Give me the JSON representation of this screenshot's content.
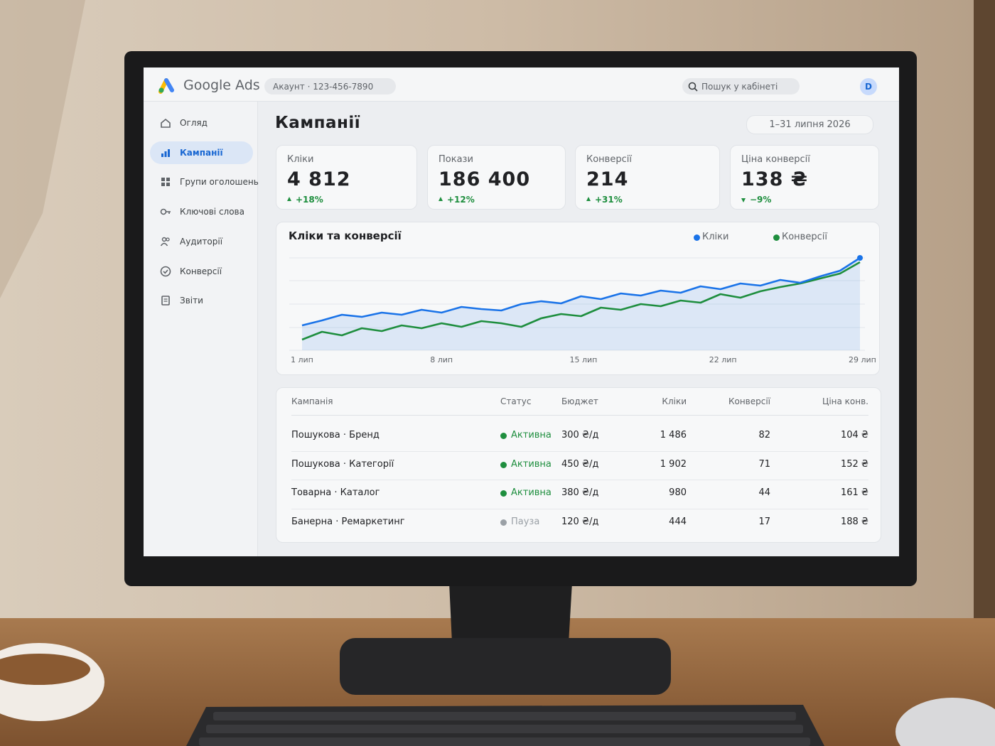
{
  "header": {
    "brand": "Google Ads",
    "account": "Акаунт · 123-456-7890",
    "search": "Пошук у кабінеті",
    "avatar": "D"
  },
  "nav": [
    "Огляд",
    "Кампанії",
    "Групи оголошень",
    "Ключові слова",
    "Аудиторії",
    "Конверсії",
    "Звіти"
  ],
  "page": {
    "title": "Кампанії",
    "date_range": "1–31 липня 2026"
  },
  "kpis": [
    {
      "label": "Кліки",
      "value": "4 812",
      "delta": "+18%"
    },
    {
      "label": "Покази",
      "value": "186 400",
      "delta": "+12%"
    },
    {
      "label": "Конверсії",
      "value": "214",
      "delta": "+31%"
    },
    {
      "label": "Ціна конверсії",
      "value": "138 ₴",
      "delta": "−9%"
    }
  ],
  "chart": {
    "title": "Кліки та конверсії",
    "x_labels": [
      "1 лип",
      "8 лип",
      "15 лип",
      "22 лип",
      "29 лип"
    ],
    "series": [
      {
        "name": "Кліки",
        "color": "#1a73e8",
        "values": [
          35,
          42,
          50,
          47,
          53,
          50,
          57,
          53,
          61,
          58,
          56,
          65,
          69,
          66,
          76,
          72,
          80,
          77,
          84,
          81,
          90,
          86,
          94,
          91,
          99,
          95,
          104,
          112,
          130
        ]
      },
      {
        "name": "Конверсії",
        "color": "#1e8e3e",
        "values": [
          15,
          26,
          21,
          31,
          27,
          35,
          31,
          38,
          33,
          41,
          38,
          33,
          45,
          51,
          48,
          60,
          57,
          65,
          62,
          70,
          67,
          79,
          74,
          83,
          89,
          94,
          101,
          108,
          124
        ]
      }
    ]
  },
  "table": {
    "columns": [
      "Кампанія",
      "Статус",
      "Бюджет",
      "Кліки",
      "Конверсії",
      "Ціна конв."
    ],
    "rows": [
      {
        "cells": [
          "Пошукова · Бренд",
          "Активна",
          "300 ₴/д",
          "1 486",
          "82",
          "104 ₴"
        ],
        "color": "#1e8e3e"
      },
      {
        "cells": [
          "Пошукова · Категорії",
          "Активна",
          "450 ₴/д",
          "1 902",
          "71",
          "152 ₴"
        ],
        "color": "#1e8e3e"
      },
      {
        "cells": [
          "Товарна · Каталог",
          "Активна",
          "380 ₴/д",
          "980",
          "44",
          "161 ₴"
        ],
        "color": "#1e8e3e"
      },
      {
        "cells": [
          "Банерна · Ремаркетинг",
          "Пауза",
          "120 ₴/д",
          "444",
          "17",
          "188 ₴"
        ],
        "color": "#9aa0a6"
      }
    ]
  }
}
